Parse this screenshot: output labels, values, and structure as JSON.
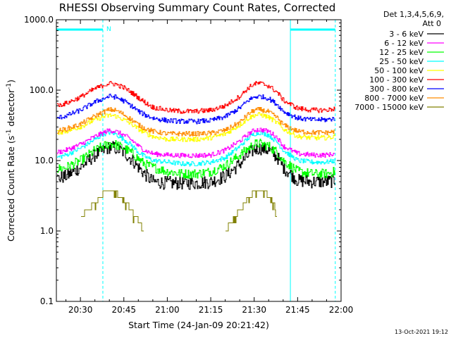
{
  "chart_data": {
    "type": "line",
    "title": "RHESSI Observing Summary Count Rates, Corrected",
    "xlabel": "Start Time (24-Jan-09 20:21:42)",
    "ylabel": "Corrected Count Rate (s⁻¹ detector⁻¹)",
    "ylabel_parts": {
      "prefix": "Corrected Count Rate (s",
      "sup1": "-1",
      "mid": " detector",
      "sup2": "-1",
      "suffix": ")"
    },
    "yscale": "log",
    "ylim": [
      0.1,
      1000
    ],
    "xlim": [
      "20:21:42",
      "22:00:00"
    ],
    "x_ticks": [
      "20:30",
      "20:45",
      "21:00",
      "21:15",
      "21:30",
      "21:45",
      "22:00"
    ],
    "y_ticks": [
      "0.1",
      "1.0",
      "10.0",
      "100.0",
      "1000.0"
    ],
    "grid": false,
    "legend_position": "right",
    "legend_header": [
      "Det 1,3,4,5,6,9,",
      "Att 0"
    ],
    "timestamp": "13-Oct-2021 19:12",
    "night_marker": "N",
    "time_points": [
      "20:21:42",
      "20:25",
      "20:30",
      "20:35",
      "20:38",
      "20:40",
      "20:42",
      "20:45",
      "20:48",
      "20:50",
      "20:52",
      "20:55",
      "21:00",
      "21:05",
      "21:10",
      "21:15",
      "21:20",
      "21:25",
      "21:28",
      "21:30",
      "21:32",
      "21:35",
      "21:38",
      "21:40",
      "21:45",
      "21:50",
      "21:55",
      "21:58"
    ],
    "series": [
      {
        "name": "3 - 6 keV",
        "color": "#000000",
        "values": [
          5.5,
          6,
          8,
          12,
          14,
          15.5,
          15,
          13,
          10,
          8,
          6.5,
          5,
          4.8,
          4.8,
          4.8,
          5,
          6,
          9,
          12,
          14.5,
          15,
          14,
          11,
          8,
          5.2,
          5,
          5,
          5.2
        ]
      },
      {
        "name": "6 - 12 keV",
        "color": "#ff00ff",
        "values": [
          13,
          14,
          17,
          22,
          25,
          27,
          26,
          23,
          19,
          16,
          14,
          12.5,
          12,
          11.8,
          11.8,
          12,
          14,
          19,
          24,
          27,
          27.5,
          26,
          21,
          16,
          12.5,
          12,
          12,
          12.5
        ]
      },
      {
        "name": "12 - 25 keV",
        "color": "#00ff00",
        "values": [
          7.5,
          8,
          10,
          14,
          16,
          17.5,
          17,
          15,
          12.5,
          10.5,
          9,
          8,
          7,
          6.5,
          6.5,
          7,
          8.5,
          12,
          15,
          17,
          17.5,
          16,
          13,
          10,
          7,
          6.5,
          6.5,
          7
        ]
      },
      {
        "name": "25 - 50 keV",
        "color": "#00ffff",
        "values": [
          11,
          12,
          15,
          20,
          24,
          25,
          24,
          20,
          16,
          13,
          11.5,
          10,
          9.5,
          9,
          9,
          9.5,
          11,
          16,
          21,
          24,
          25,
          23,
          18,
          14,
          10,
          9.5,
          9.5,
          10
        ]
      },
      {
        "name": "50 - 100 keV",
        "color": "#ffff00",
        "values": [
          25,
          26,
          30,
          38,
          42,
          44,
          43,
          38,
          32,
          28,
          25,
          22,
          20,
          20,
          20,
          21,
          24,
          32,
          40,
          44,
          45,
          41,
          34,
          28,
          22,
          21,
          21,
          22
        ]
      },
      {
        "name": "100 - 300 keV",
        "color": "#ff0000",
        "values": [
          60,
          65,
          80,
          105,
          118,
          125,
          122,
          108,
          90,
          78,
          68,
          57,
          52,
          50,
          50,
          52,
          60,
          82,
          108,
          123,
          125,
          115,
          92,
          72,
          55,
          52,
          52,
          55
        ]
      },
      {
        "name": "300 - 800 keV",
        "color": "#0000ff",
        "values": [
          40,
          43,
          52,
          68,
          76,
          82,
          80,
          70,
          58,
          50,
          45,
          40,
          37,
          36,
          36,
          37,
          42,
          56,
          72,
          80,
          82,
          76,
          62,
          50,
          40,
          38,
          38,
          40
        ]
      },
      {
        "name": "800 - 7000 keV",
        "color": "#ff8c00",
        "values": [
          26,
          28,
          33,
          43,
          49,
          53,
          52,
          45,
          37,
          32,
          29,
          26,
          24,
          24,
          24,
          24.5,
          27,
          35,
          46,
          52,
          53,
          49,
          40,
          32,
          26,
          25,
          25,
          26
        ]
      },
      {
        "name": "7000 - 15000 keV",
        "color": "#808000",
        "values": [
          null,
          null,
          1.6,
          2.5,
          3.5,
          3.7,
          3.5,
          2.8,
          1.8,
          1.4,
          1.0,
          null,
          null,
          null,
          null,
          null,
          1.0,
          2.0,
          3.0,
          3.6,
          3.8,
          3.2,
          2.0,
          null,
          null,
          null,
          null,
          null
        ]
      }
    ],
    "cyan_bars": [
      {
        "from": "20:21:42",
        "to": "20:37:45"
      },
      {
        "from": "21:42:30",
        "to": "21:58:00"
      }
    ],
    "cyan_solid_lines": [
      "20:21:42",
      "21:42:30"
    ],
    "cyan_dashed_lines": [
      "20:37:45",
      "21:58:00"
    ]
  }
}
